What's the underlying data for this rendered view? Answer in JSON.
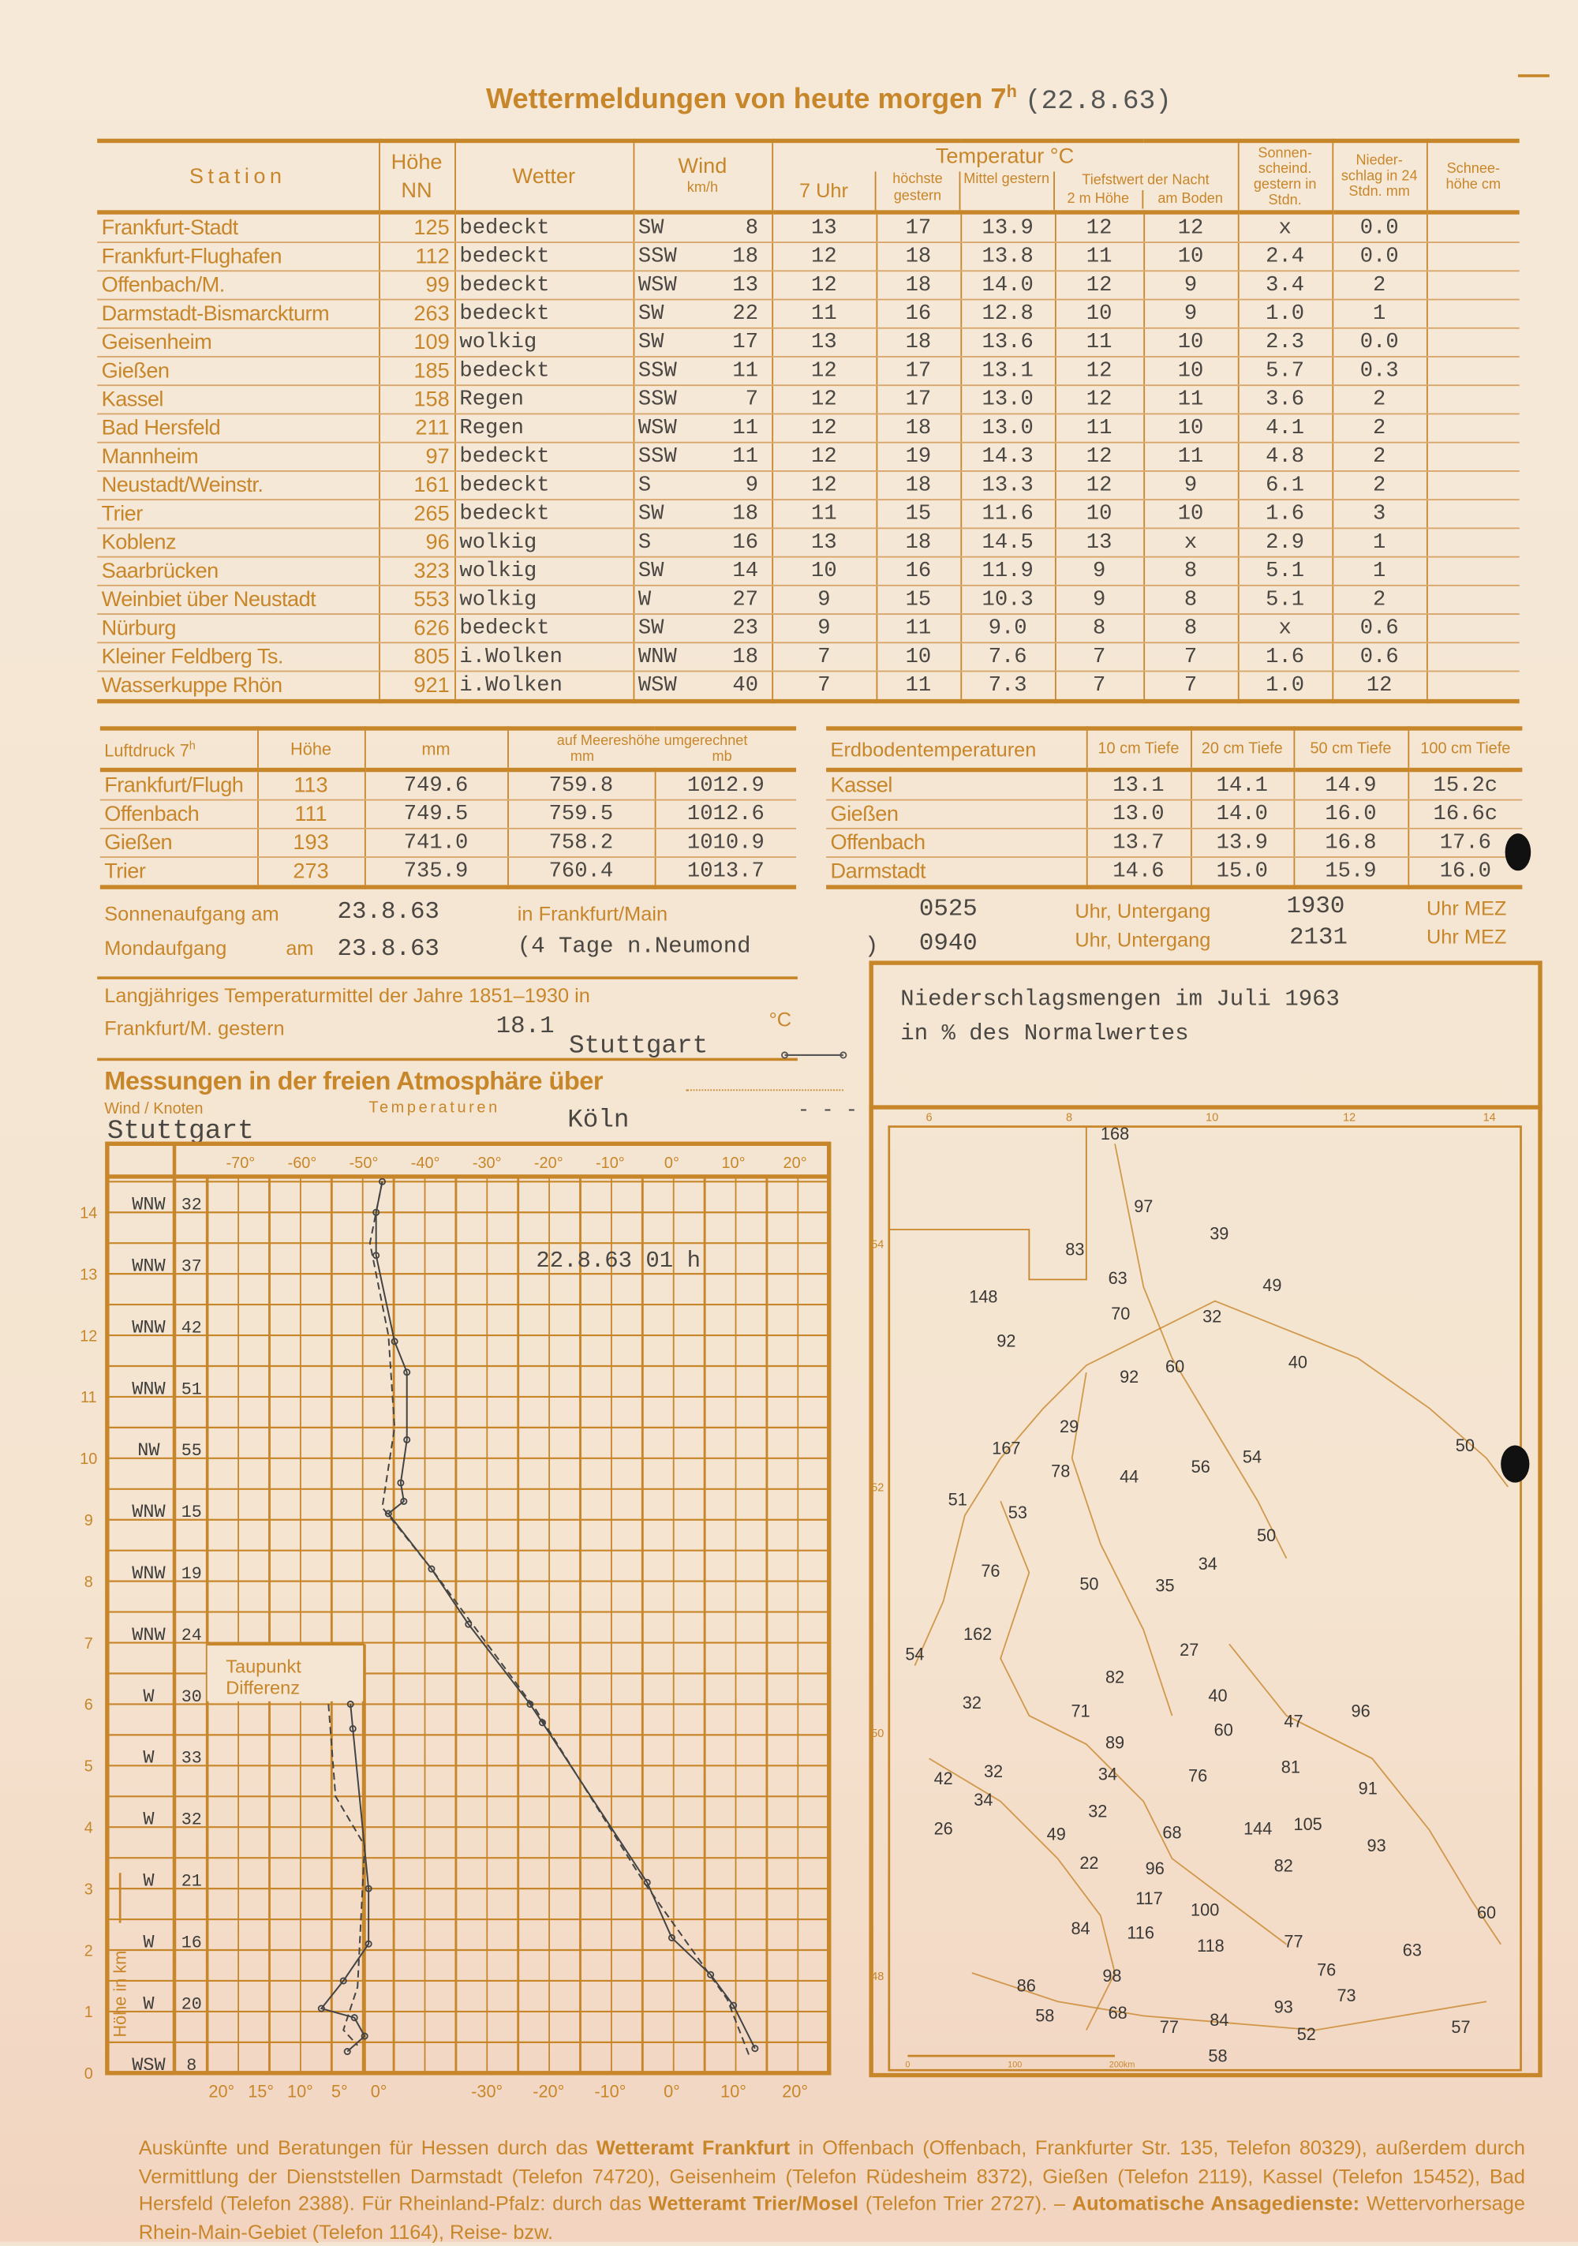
{
  "title": {
    "label": "Wettermeldungen von heute morgen 7",
    "sup": "h",
    "date": "(22.8.63)"
  },
  "main_table": {
    "headers": {
      "station": "Station",
      "hoehe": "Höhe NN",
      "wetter": "Wetter",
      "wind": "Wind",
      "wind_unit": "km/h",
      "temperatur": "Temperatur °C",
      "uhr7": "7 Uhr",
      "hoechste": "höchste gestern",
      "mittel": "Mittel gestern",
      "tiefstwert": "Tiefstwert der Nacht",
      "m2": "2 m Höhe",
      "boden": "am Boden",
      "sonne": "Sonnen- scheind. gestern in Stdn.",
      "nieder": "Nieder- schlag in 24 Stdn. mm",
      "schnee": "Schnee- höhe cm"
    },
    "rows": [
      [
        "Frankfurt-Stadt",
        "125",
        "bedeckt",
        "SW",
        "8",
        "13",
        "17",
        "13.9",
        "12",
        "12",
        "x",
        "0.0",
        ""
      ],
      [
        "Frankfurt-Flughafen",
        "112",
        "bedeckt",
        "SSW",
        "18",
        "12",
        "18",
        "13.8",
        "11",
        "10",
        "2.4",
        "0.0",
        ""
      ],
      [
        "Offenbach/M.",
        "99",
        "bedeckt",
        "WSW",
        "13",
        "12",
        "18",
        "14.0",
        "12",
        "9",
        "3.4",
        "2",
        ""
      ],
      [
        "Darmstadt-Bismarckturm",
        "263",
        "bedeckt",
        "SW",
        "22",
        "11",
        "16",
        "12.8",
        "10",
        "9",
        "1.0",
        "1",
        ""
      ],
      [
        "Geisenheim",
        "109",
        "wolkig",
        "SW",
        "17",
        "13",
        "18",
        "13.6",
        "11",
        "10",
        "2.3",
        "0.0",
        ""
      ],
      [
        "Gießen",
        "185",
        "bedeckt",
        "SSW",
        "11",
        "12",
        "17",
        "13.1",
        "12",
        "10",
        "5.7",
        "0.3",
        ""
      ],
      [
        "Kassel",
        "158",
        "Regen",
        "SSW",
        "7",
        "12",
        "17",
        "13.0",
        "12",
        "11",
        "3.6",
        "2",
        ""
      ],
      [
        "Bad Hersfeld",
        "211",
        "Regen",
        "WSW",
        "11",
        "12",
        "18",
        "13.0",
        "11",
        "10",
        "4.1",
        "2",
        ""
      ],
      [
        "Mannheim",
        "97",
        "bedeckt",
        "SSW",
        "11",
        "12",
        "19",
        "14.3",
        "12",
        "11",
        "4.8",
        "2",
        ""
      ],
      [
        "Neustadt/Weinstr.",
        "161",
        "bedeckt",
        "S",
        "9",
        "12",
        "18",
        "13.3",
        "12",
        "9",
        "6.1",
        "2",
        ""
      ],
      [
        "Trier",
        "265",
        "bedeckt",
        "SW",
        "18",
        "11",
        "15",
        "11.6",
        "10",
        "10",
        "1.6",
        "3",
        ""
      ],
      [
        "Koblenz",
        "96",
        "wolkig",
        "S",
        "16",
        "13",
        "18",
        "14.5",
        "13",
        "x",
        "2.9",
        "1",
        ""
      ],
      [
        "Saarbrücken",
        "323",
        "wolkig",
        "SW",
        "14",
        "10",
        "16",
        "11.9",
        "9",
        "8",
        "5.1",
        "1",
        ""
      ],
      [
        "Weinbiet über Neustadt",
        "553",
        "wolkig",
        "W",
        "27",
        "9",
        "15",
        "10.3",
        "9",
        "8",
        "5.1",
        "2",
        ""
      ],
      [
        "Nürburg",
        "626",
        "bedeckt",
        "SW",
        "23",
        "9",
        "11",
        "9.0",
        "8",
        "8",
        "x",
        "0.6",
        ""
      ],
      [
        "Kleiner Feldberg Ts.",
        "805",
        "i.Wolken",
        "WNW",
        "18",
        "7",
        "10",
        "7.6",
        "7",
        "7",
        "1.6",
        "0.6",
        ""
      ],
      [
        "Wasserkuppe Rhön",
        "921",
        "i.Wolken",
        "WSW",
        "40",
        "7",
        "11",
        "7.3",
        "7",
        "7",
        "1.0",
        "12",
        ""
      ]
    ]
  },
  "pressure_table": {
    "headers": {
      "title": "Luftdruck 7",
      "title_sup": "h",
      "hoehe": "Höhe",
      "mm": "mm",
      "sea": "auf Meereshöhe umgerechnet",
      "sea_mm": "mm",
      "sea_mb": "mb"
    },
    "rows": [
      [
        "Frankfurt/Flugh",
        "113",
        "749.6",
        "759.8",
        "1012.9"
      ],
      [
        "Offenbach",
        "111",
        "749.5",
        "759.5",
        "1012.6"
      ],
      [
        "Gießen",
        "193",
        "741.0",
        "758.2",
        "1010.9"
      ],
      [
        "Trier",
        "273",
        "735.9",
        "760.4",
        "1013.7"
      ]
    ]
  },
  "soil_table": {
    "headers": [
      "Erdbodentemperaturen",
      "10 cm Tiefe",
      "20 cm Tiefe",
      "50 cm Tiefe",
      "100 cm Tiefe"
    ],
    "rows": [
      [
        "Kassel",
        "13.1",
        "14.1",
        "14.9",
        "15.2c"
      ],
      [
        "Gießen",
        "13.0",
        "14.0",
        "16.0",
        "16.6c"
      ],
      [
        "Offenbach",
        "13.7",
        "13.9",
        "16.8",
        "17.6"
      ],
      [
        "Darmstadt",
        "14.6",
        "15.0",
        "15.9",
        "16.0"
      ]
    ]
  },
  "astro": {
    "sun": {
      "label": "Sonnenaufgang am",
      "date": "23.8.63",
      "place": "in Frankfurt/Main",
      "rise": "0525",
      "set_label": "Uhr, Untergang",
      "set": "1930",
      "unit": "Uhr MEZ"
    },
    "moon": {
      "label": "Mondaufgang",
      "am": "am",
      "date": "23.8.63",
      "note": "(4 Tage n.Neumond",
      "paren": ")",
      "rise": "0940",
      "set_label": "Uhr, Untergang",
      "set": "2131",
      "unit": "Uhr MEZ"
    }
  },
  "longterm": {
    "line1": "Langjähriges Temperaturmittel der Jahre 1851–1930 in",
    "line2": "Frankfurt/M. gestern",
    "value": "18.1",
    "unit": "°C"
  },
  "aerology": {
    "title": "Messungen in der freien Atmosphäre über",
    "station_solid": "Stuttgart",
    "station_dashed": "Köln",
    "dashed_legend": "- - -",
    "wind_label": "Wind / Knoten",
    "temp_label": "Temperaturen",
    "wind_station": "Stuttgart",
    "stamp": "22.8.63 01 h",
    "dew_label": "Taupunkt Differenz",
    "height_axis_label": "Höhe in km",
    "top_ticks": [
      "-70°",
      "-60°",
      "-50°",
      "-40°",
      "-30°",
      "-20°",
      "-10°",
      "0°",
      "10°",
      "20°"
    ],
    "bottom_ticks": [
      "-30°",
      "-20°",
      "-10°",
      "0°",
      "10°",
      "20°"
    ],
    "dew_ticks": [
      "20°",
      "15°",
      "10°",
      "5°",
      "0°"
    ],
    "height_ticks": [
      "0",
      "1",
      "2",
      "3",
      "4",
      "5",
      "6",
      "7",
      "8",
      "9",
      "10",
      "11",
      "12",
      "13",
      "14"
    ],
    "winds": [
      {
        "km": 14,
        "dir": "WNW",
        "kn": "32"
      },
      {
        "km": 13,
        "dir": "WNW",
        "kn": "37"
      },
      {
        "km": 12,
        "dir": "WNW",
        "kn": "42"
      },
      {
        "km": 11,
        "dir": "WNW",
        "kn": "51"
      },
      {
        "km": 10,
        "dir": "NW",
        "kn": "55"
      },
      {
        "km": 9,
        "dir": "WNW",
        "kn": "15"
      },
      {
        "km": 8,
        "dir": "WNW",
        "kn": "19"
      },
      {
        "km": 7,
        "dir": "WNW",
        "kn": "24"
      },
      {
        "km": 6,
        "dir": "W",
        "kn": "30"
      },
      {
        "km": 5,
        "dir": "W",
        "kn": "33"
      },
      {
        "km": 4,
        "dir": "W",
        "kn": "32"
      },
      {
        "km": 3,
        "dir": "W",
        "kn": "21"
      },
      {
        "km": 2,
        "dir": "W",
        "kn": "16"
      },
      {
        "km": 1,
        "dir": "W",
        "kn": "20"
      },
      {
        "km": 0,
        "dir": "WSW",
        "kn": "8"
      }
    ],
    "temp_stuttgart": [
      [
        0.4,
        13.5
      ],
      [
        1.1,
        10
      ],
      [
        1.6,
        6.3
      ],
      [
        2.2,
        0
      ],
      [
        3.1,
        -4
      ],
      [
        5.7,
        -21
      ],
      [
        6.0,
        -23
      ],
      [
        7.3,
        -33
      ],
      [
        8.2,
        -39
      ],
      [
        9.1,
        -46
      ],
      [
        9.3,
        -43.5
      ],
      [
        9.6,
        -44
      ],
      [
        10.3,
        -43
      ],
      [
        11.4,
        -43
      ],
      [
        11.9,
        -45
      ],
      [
        13.3,
        -48
      ],
      [
        14.0,
        -48
      ],
      [
        14.5,
        -47
      ]
    ],
    "temp_koeln": [
      [
        0.3,
        12.5
      ],
      [
        1.2,
        9
      ],
      [
        3.1,
        -4.5
      ],
      [
        5.9,
        -22
      ],
      [
        8.2,
        -39
      ],
      [
        9.2,
        -47
      ],
      [
        10.5,
        -45
      ],
      [
        12.0,
        -46
      ],
      [
        13.5,
        -49
      ],
      [
        14.5,
        -47
      ]
    ],
    "dew_stuttgart": [
      [
        6.0,
        3.6
      ],
      [
        5.6,
        3.3
      ],
      [
        3.0,
        1.3
      ],
      [
        2.1,
        1.3
      ],
      [
        1.5,
        4.5
      ],
      [
        1.05,
        7.3
      ],
      [
        0.9,
        3.1
      ],
      [
        0.6,
        1.8
      ],
      [
        0.35,
        4
      ]
    ],
    "dew_koeln": [
      [
        6.0,
        6.4
      ],
      [
        4.5,
        5.5
      ],
      [
        3.7,
        1.8
      ],
      [
        1.4,
        2.7
      ],
      [
        0.7,
        4.5
      ],
      [
        0.45,
        2.7
      ]
    ]
  },
  "precip_map": {
    "title_line1": "Niederschlagsmengen im Juli 1963",
    "title_line2": "in % des Normalwertes",
    "lon_labels": [
      "6",
      "8",
      "10",
      "12",
      "14"
    ],
    "lat_labels": [
      "54",
      "52",
      "50",
      "48"
    ],
    "scale": [
      "0",
      "100",
      "200km"
    ],
    "values": [
      "168",
      "97",
      "39",
      "83",
      "49",
      "148",
      "63",
      "70",
      "32",
      "92",
      "60",
      "40",
      "92",
      "50",
      "29",
      "167",
      "78",
      "44",
      "56",
      "54",
      "51",
      "53",
      "50",
      "34",
      "76",
      "50",
      "35",
      "162",
      "54",
      "27",
      "82",
      "40",
      "32",
      "71",
      "47",
      "96",
      "60",
      "89",
      "42",
      "32",
      "34",
      "76",
      "81",
      "91",
      "34",
      "32",
      "26",
      "49",
      "68",
      "144",
      "105",
      "93",
      "22",
      "96",
      "82",
      "117",
      "100",
      "84",
      "116",
      "118",
      "77",
      "63",
      "60",
      "76",
      "86",
      "98",
      "73",
      "93",
      "58",
      "68",
      "77",
      "84",
      "52",
      "57",
      "58"
    ]
  },
  "footer": [
    {
      "t": "Auskünfte und Beratungen für Hessen durch das ",
      "b": false
    },
    {
      "t": "Wetteramt Frankfurt",
      "b": true
    },
    {
      "t": " in Offenbach (Offenbach, Frankfurter Str. 135, Telefon 80329), außerdem durch Vermittlung der Dienststellen Darmstadt (Telefon 74720), Geisenheim (Telefon Rüdesheim 8372), Gießen (Telefon 2119), Kassel (Telefon 15452), Bad Hersfeld (Telefon 2388). Für Rheinland-Pfalz: durch das ",
      "b": false
    },
    {
      "t": "Wetteramt Trier/Mosel",
      "b": true
    },
    {
      "t": " (Telefon Trier 2727). – ",
      "b": false
    },
    {
      "t": "Automatische Ansagedienste:",
      "b": true
    },
    {
      "t": " Wettervorhersage Rhein-Main-Gebiet (Telefon 1164), Reise- bzw.",
      "b": false
    }
  ],
  "colors": {
    "ink": "#c8862a",
    "typewriter": "#4a4642",
    "paper": "#f5e7d5"
  }
}
